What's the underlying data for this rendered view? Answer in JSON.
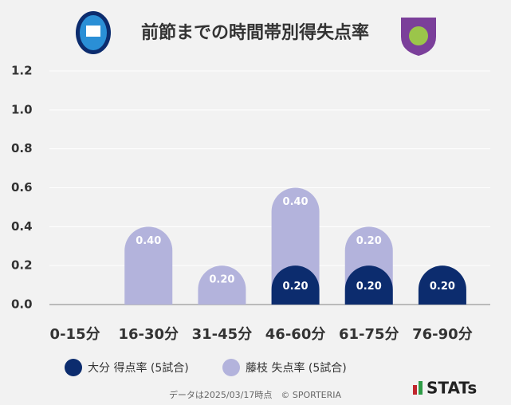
{
  "chart_data": {
    "type": "stacked-bar",
    "title": "前節までの時間帯別得失点率",
    "categories": [
      "0-15分",
      "16-30分",
      "31-45分",
      "46-60分",
      "61-75分",
      "76-90分"
    ],
    "series": [
      {
        "name": "大分 得点率 (5試合)",
        "color": "#0c2c6e",
        "values": [
          0,
          0,
          0,
          0.2,
          0.2,
          0.2
        ],
        "value_labels": [
          null,
          null,
          null,
          "0.20",
          "0.20",
          "0.20"
        ]
      },
      {
        "name": "藤枝 失点率 (5試合)",
        "color": "#b3b3dc",
        "values": [
          0,
          0.4,
          0.2,
          0.4,
          0.2,
          0
        ],
        "value_labels": [
          null,
          "0.40",
          "0.20",
          "0.40",
          "0.20",
          null
        ]
      }
    ],
    "ylim": [
      0,
      1.2
    ],
    "yticks": [
      {
        "value": 0,
        "label": "0.0"
      },
      {
        "value": 0.2,
        "label": "0.2"
      },
      {
        "value": 0.4,
        "label": "0.4"
      },
      {
        "value": 0.6,
        "label": "0.6"
      },
      {
        "value": 0.8,
        "label": "0.8"
      },
      {
        "value": 1.0,
        "label": "1.0"
      },
      {
        "value": 1.2,
        "label": "1.2"
      }
    ],
    "grid": true,
    "footer": "データは2025/03/17時点　© SPORTERIA",
    "brand": "STATs"
  }
}
